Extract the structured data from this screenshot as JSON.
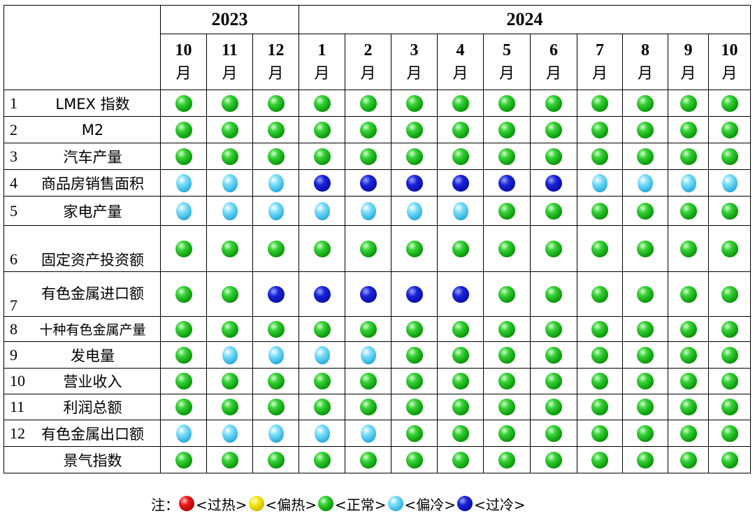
{
  "years": [
    {
      "label": "2023",
      "span": 3
    },
    {
      "label": "2024",
      "span": 10
    }
  ],
  "months": [
    {
      "num": "10",
      "unit": "月"
    },
    {
      "num": "11",
      "unit": "月"
    },
    {
      "num": "12",
      "unit": "月"
    },
    {
      "num": "1",
      "unit": "月"
    },
    {
      "num": "2",
      "unit": "月"
    },
    {
      "num": "3",
      "unit": "月"
    },
    {
      "num": "4",
      "unit": "月"
    },
    {
      "num": "5",
      "unit": "月"
    },
    {
      "num": "6",
      "unit": "月"
    },
    {
      "num": "7",
      "unit": "月"
    },
    {
      "num": "8",
      "unit": "月"
    },
    {
      "num": "9",
      "unit": "月"
    },
    {
      "num": "10",
      "unit": "月"
    }
  ],
  "statuses": {
    "normal": "#1fbf1f",
    "cool": "#4cc8f0",
    "cold": "#0d14c8",
    "hot": "#e01010",
    "warm": "#f0e000"
  },
  "rows": [
    {
      "num": "1",
      "name": "LMEX 指数",
      "values": [
        "normal",
        "normal",
        "normal",
        "normal",
        "normal",
        "normal",
        "normal",
        "normal",
        "normal",
        "normal",
        "normal",
        "normal",
        "normal"
      ]
    },
    {
      "num": "2",
      "name": "M2",
      "values": [
        "normal",
        "normal",
        "normal",
        "normal",
        "normal",
        "normal",
        "normal",
        "normal",
        "normal",
        "normal",
        "normal",
        "normal",
        "normal"
      ]
    },
    {
      "num": "3",
      "name": "汽车产量",
      "values": [
        "normal",
        "normal",
        "normal",
        "normal",
        "normal",
        "normal",
        "normal",
        "normal",
        "normal",
        "normal",
        "normal",
        "normal",
        "normal"
      ]
    },
    {
      "num": "4",
      "name": "商品房销售面积",
      "values": [
        "cool",
        "cool",
        "cool",
        "cold",
        "cold",
        "cold",
        "cold",
        "cold",
        "cold",
        "cool",
        "cool",
        "cool",
        "cool"
      ]
    },
    {
      "num": "5",
      "name": "家电产量",
      "values": [
        "cool",
        "cool",
        "cool",
        "cool",
        "cool",
        "cool",
        "cool",
        "normal",
        "normal",
        "normal",
        "normal",
        "normal",
        "normal"
      ]
    },
    {
      "num": "6",
      "name": "固定资产投资额",
      "values": [
        "normal",
        "normal",
        "normal",
        "normal",
        "normal",
        "normal",
        "normal",
        "normal",
        "normal",
        "normal",
        "normal",
        "normal",
        "normal"
      ]
    },
    {
      "num": "7",
      "name": "有色金属进口额",
      "values": [
        "normal",
        "normal",
        "cold",
        "cold",
        "cold",
        "cold",
        "cold",
        "normal",
        "normal",
        "normal",
        "normal",
        "normal",
        "normal"
      ]
    },
    {
      "num": "8",
      "name": "十种有色金属产量",
      "values": [
        "normal",
        "normal",
        "normal",
        "normal",
        "normal",
        "normal",
        "normal",
        "normal",
        "normal",
        "normal",
        "normal",
        "normal",
        "normal"
      ]
    },
    {
      "num": "9",
      "name": "发电量",
      "values": [
        "normal",
        "cool",
        "cool",
        "cool",
        "cool",
        "normal",
        "normal",
        "normal",
        "normal",
        "normal",
        "normal",
        "normal",
        "normal"
      ]
    },
    {
      "num": "10",
      "name": "营业收入",
      "values": [
        "normal",
        "normal",
        "normal",
        "normal",
        "normal",
        "normal",
        "normal",
        "normal",
        "normal",
        "normal",
        "normal",
        "normal",
        "normal"
      ]
    },
    {
      "num": "11",
      "name": "利润总额",
      "values": [
        "normal",
        "normal",
        "normal",
        "normal",
        "normal",
        "normal",
        "normal",
        "normal",
        "normal",
        "normal",
        "normal",
        "normal",
        "normal"
      ]
    },
    {
      "num": "12",
      "name": "有色金属出口额",
      "values": [
        "cool",
        "cool",
        "cool",
        "cool",
        "cool",
        "normal",
        "normal",
        "normal",
        "normal",
        "normal",
        "normal",
        "normal",
        "normal"
      ]
    },
    {
      "num": "",
      "name": "景气指数",
      "values": [
        "normal",
        "normal",
        "normal",
        "normal",
        "normal",
        "normal",
        "normal",
        "normal",
        "normal",
        "normal",
        "normal",
        "normal",
        "normal"
      ]
    }
  ],
  "legend": {
    "prefix": "注：",
    "items": [
      {
        "status": "hot",
        "icon": "red-ball-icon",
        "label": "<过热>"
      },
      {
        "status": "warm",
        "icon": "yellow-ball-icon",
        "label": "<偏热>"
      },
      {
        "status": "normal",
        "icon": "green-ball-icon",
        "label": "<正常>"
      },
      {
        "status": "cool",
        "icon": "light-blue-ball-icon",
        "label": "<偏冷>"
      },
      {
        "status": "cold",
        "icon": "dark-blue-ball-icon",
        "label": "<过冷>"
      }
    ]
  }
}
